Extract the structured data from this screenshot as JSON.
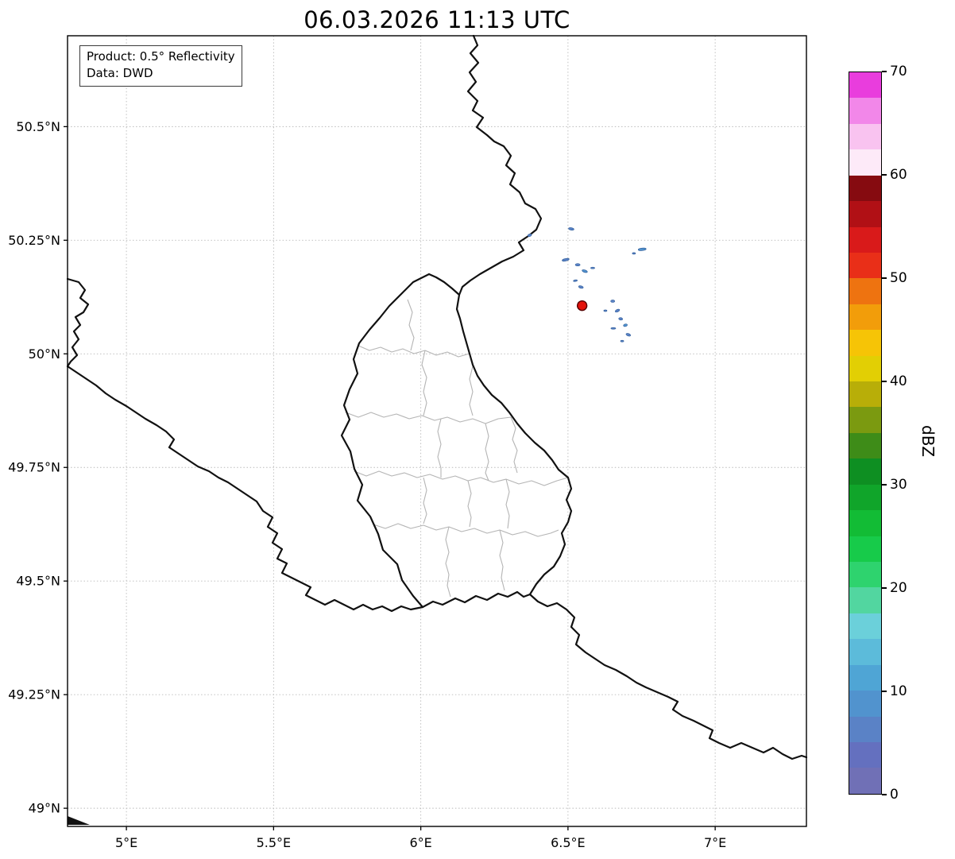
{
  "chart_data": {
    "type": "heatmap",
    "title": "06.03.2026 11:13 UTC",
    "annotation": {
      "product": "Product: 0.5° Reflectivity",
      "source": "Data: DWD"
    },
    "grid": true,
    "x_axis": {
      "min": 4.8,
      "max": 7.31,
      "ticks": [
        {
          "v": 5.0,
          "label": "5°E"
        },
        {
          "v": 5.5,
          "label": "5.5°E"
        },
        {
          "v": 6.0,
          "label": "6°E"
        },
        {
          "v": 6.5,
          "label": "6.5°E"
        },
        {
          "v": 7.0,
          "label": "7°E"
        }
      ]
    },
    "y_axis": {
      "min": 48.96,
      "max": 50.7,
      "ticks": [
        {
          "v": 49.0,
          "label": "49°N"
        },
        {
          "v": 49.25,
          "label": "49.25°N"
        },
        {
          "v": 49.5,
          "label": "49.5°N"
        },
        {
          "v": 49.75,
          "label": "49.75°N"
        },
        {
          "v": 50.0,
          "label": "50°N"
        },
        {
          "v": 50.25,
          "label": "50.25°N"
        },
        {
          "v": 50.5,
          "label": "50.5°N"
        }
      ]
    },
    "colorbar": {
      "label": "dBZ",
      "min": 0,
      "max": 70,
      "tick_values": [
        0,
        10,
        20,
        30,
        40,
        50,
        60,
        70
      ],
      "step": 2.5,
      "colors_bottom_to_top": [
        "#7070b6",
        "#6470bf",
        "#5a82c6",
        "#5193ce",
        "#4fa5d5",
        "#5cbbda",
        "#6bd0da",
        "#52d6a0",
        "#2ed36e",
        "#17cb4a",
        "#12bc35",
        "#10a52a",
        "#0e8f22",
        "#3e8c18",
        "#7b9a10",
        "#b8ae08",
        "#e2cf04",
        "#f6c406",
        "#f29d0a",
        "#ee7310",
        "#e92f18",
        "#d91a1a",
        "#b11015",
        "#860b10",
        "#fdeaf8",
        "#f9c3f0",
        "#f287e9",
        "#e93ddd"
      ]
    },
    "radar_site": {
      "lon": 6.548,
      "lat": 50.106,
      "marker_color": "#e3120b",
      "edge_color": "#550000",
      "radius_px": 6
    },
    "echo_edge_color": "#33609c",
    "echoes": [
      {
        "lon": 6.37,
        "lat": 50.261,
        "dbz": 6,
        "w": 5,
        "h": 3,
        "rot": -20
      },
      {
        "lon": 6.511,
        "lat": 50.275,
        "dbz": 7,
        "w": 7,
        "h": 3,
        "rot": 10
      },
      {
        "lon": 6.492,
        "lat": 50.207,
        "dbz": 7,
        "w": 9,
        "h": 3,
        "rot": -12
      },
      {
        "lon": 6.533,
        "lat": 50.196,
        "dbz": 6,
        "w": 6,
        "h": 3,
        "rot": 0
      },
      {
        "lon": 6.557,
        "lat": 50.182,
        "dbz": 8,
        "w": 7,
        "h": 3,
        "rot": 18
      },
      {
        "lon": 6.584,
        "lat": 50.189,
        "dbz": 5,
        "w": 5,
        "h": 2,
        "rot": 0
      },
      {
        "lon": 6.525,
        "lat": 50.161,
        "dbz": 6,
        "w": 5,
        "h": 2,
        "rot": -10
      },
      {
        "lon": 6.544,
        "lat": 50.147,
        "dbz": 7,
        "w": 6,
        "h": 3,
        "rot": 15
      },
      {
        "lon": 6.752,
        "lat": 50.23,
        "dbz": 8,
        "w": 10,
        "h": 3,
        "rot": -6
      },
      {
        "lon": 6.724,
        "lat": 50.221,
        "dbz": 5,
        "w": 4,
        "h": 2,
        "rot": 0
      },
      {
        "lon": 6.652,
        "lat": 50.116,
        "dbz": 6,
        "w": 5,
        "h": 3,
        "rot": 0
      },
      {
        "lon": 6.668,
        "lat": 50.095,
        "dbz": 7,
        "w": 6,
        "h": 3,
        "rot": -25
      },
      {
        "lon": 6.679,
        "lat": 50.077,
        "dbz": 7,
        "w": 5,
        "h": 3,
        "rot": 10
      },
      {
        "lon": 6.654,
        "lat": 50.056,
        "dbz": 6,
        "w": 6,
        "h": 2,
        "rot": 0
      },
      {
        "lon": 6.695,
        "lat": 50.063,
        "dbz": 8,
        "w": 5,
        "h": 3,
        "rot": -15
      },
      {
        "lon": 6.705,
        "lat": 50.042,
        "dbz": 7,
        "w": 6,
        "h": 3,
        "rot": 20
      },
      {
        "lon": 6.684,
        "lat": 50.028,
        "dbz": 6,
        "w": 4,
        "h": 2,
        "rot": 0
      },
      {
        "lon": 6.627,
        "lat": 50.095,
        "dbz": 5,
        "w": 4,
        "h": 2,
        "rot": 0
      }
    ]
  }
}
